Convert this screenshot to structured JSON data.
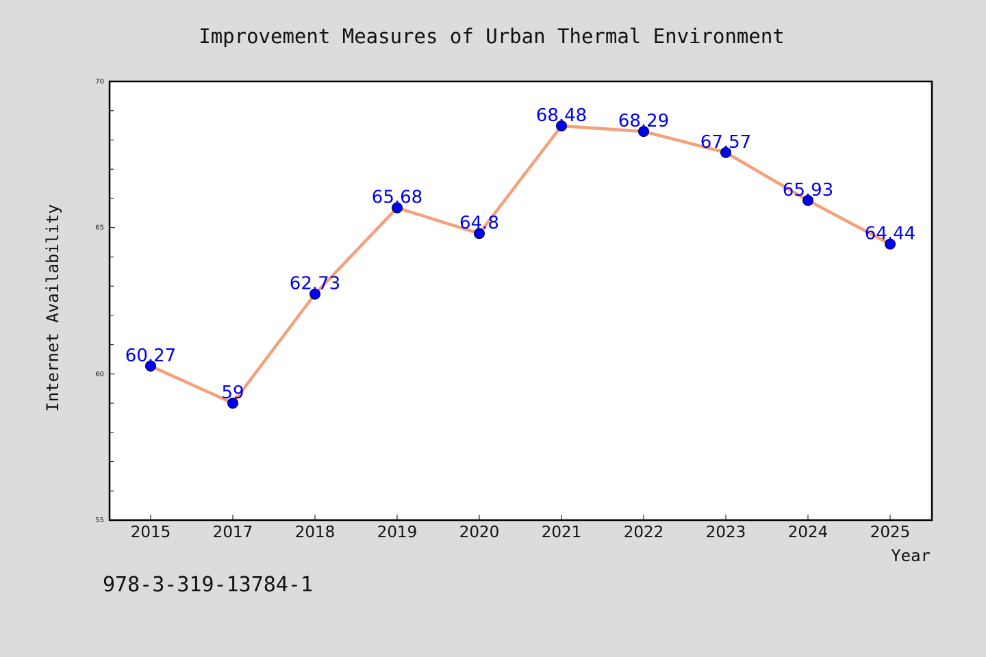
{
  "chart_data": {
    "type": "line",
    "title": "Improvement Measures of Urban Thermal Environment",
    "xlabel": "Year",
    "ylabel": "Internet Availability",
    "categories": [
      "2015",
      "2017",
      "2018",
      "2019",
      "2020",
      "2021",
      "2022",
      "2023",
      "2024",
      "2025"
    ],
    "series": [
      {
        "values": [
          60.27,
          59,
          62.73,
          65.68,
          64.8,
          68.48,
          68.29,
          67.57,
          65.93,
          64.44
        ],
        "data_labels": [
          "60.27",
          "59",
          "62.73",
          "65.68",
          "64.8",
          "68.48",
          "68.29",
          "67.57",
          "65.93",
          "64.44"
        ],
        "line_color": "#f4a07a",
        "marker_color": "#0000ee",
        "label_color": "#0000ee"
      }
    ],
    "ylim": [
      55,
      70
    ],
    "yticks": [
      "55",
      "60",
      "65",
      "70"
    ],
    "grid": false,
    "legend": "none",
    "background_color": "#dcdcdc",
    "plot_background_color": "#ffffff"
  },
  "footer": {
    "identifier": "978-3-319-13784-1"
  }
}
